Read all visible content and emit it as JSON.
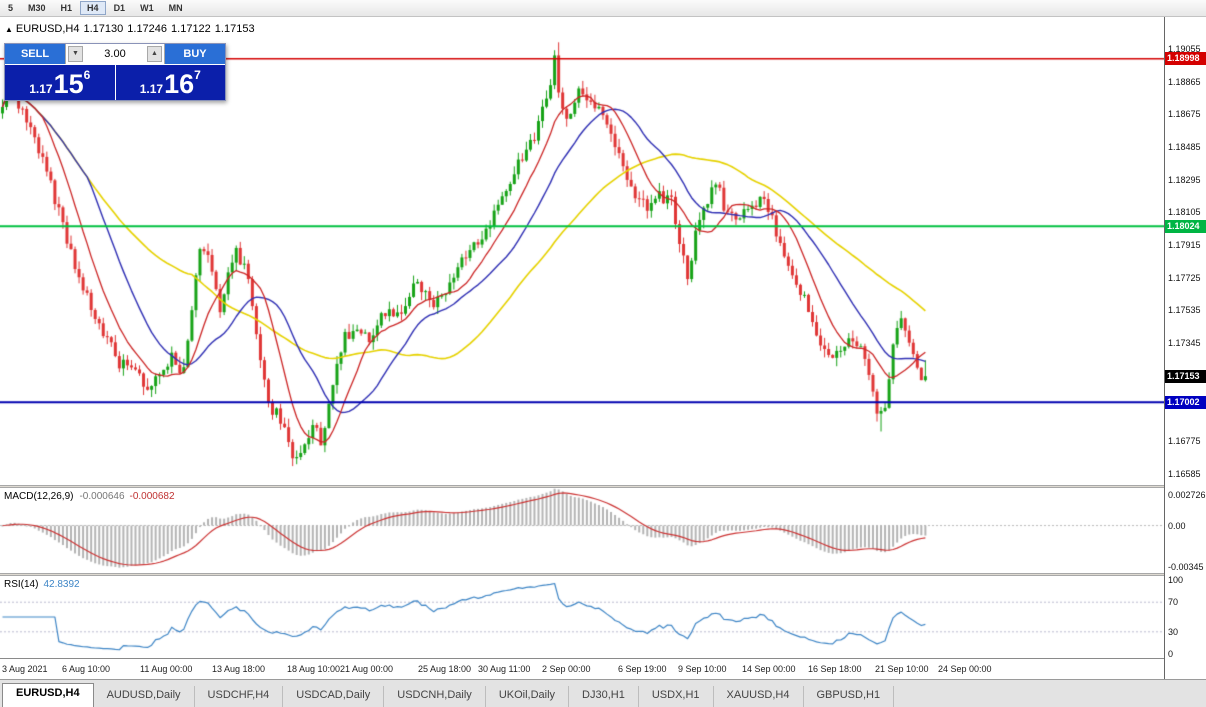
{
  "toolbar": {
    "timeframes": [
      {
        "label": "5",
        "active": false
      },
      {
        "label": "M30",
        "active": false
      },
      {
        "label": "H1",
        "active": false
      },
      {
        "label": "H4",
        "active": true
      },
      {
        "label": "D1",
        "active": false
      },
      {
        "label": "W1",
        "active": false
      },
      {
        "label": "MN",
        "active": false
      }
    ]
  },
  "chart": {
    "symbol_line": {
      "arrow": "▲",
      "symbol": "EURUSD,H4",
      "open": "1.17130",
      "high": "1.17246",
      "low": "1.17122",
      "close": "1.17153"
    },
    "trade_panel": {
      "sell_label": "SELL",
      "buy_label": "BUY",
      "volume": "3.00",
      "down_glyph": "▼",
      "up_glyph": "▲",
      "sell_price": {
        "prefix": "1.17",
        "big": "15",
        "sup": "6"
      },
      "buy_price": {
        "prefix": "1.17",
        "big": "16",
        "sup": "7"
      }
    },
    "price_axis": {
      "gridline_labels": [
        "1.19055",
        "1.18865",
        "1.18675",
        "1.18485",
        "1.18295",
        "1.18105",
        "1.17915",
        "1.17725",
        "1.17535",
        "1.17345",
        "1.16775",
        "1.16585"
      ],
      "marked": [
        {
          "value": "1.18998",
          "bg": "#d40000"
        },
        {
          "value": "1.18024",
          "bg": "#00b544"
        },
        {
          "value": "1.17153",
          "bg": "#000000"
        },
        {
          "value": "1.17002",
          "bg": "#0000c0"
        }
      ]
    },
    "time_axis": [
      [
        "3 Aug 2021",
        2
      ],
      [
        "6 Aug 10:00",
        62
      ],
      [
        "11 Aug 00:00",
        140
      ],
      [
        "13 Aug 18:00",
        212
      ],
      [
        "18 Aug 10:00",
        287
      ],
      [
        "21 Aug 00:00",
        340
      ],
      [
        "25 Aug 18:00",
        418
      ],
      [
        "30 Aug 11:00",
        478
      ],
      [
        "2 Sep 00:00",
        542
      ],
      [
        "6 Sep 19:00",
        618
      ],
      [
        "9 Sep 10:00",
        678
      ],
      [
        "14 Sep 00:00",
        742
      ],
      [
        "16 Sep 18:00",
        808
      ],
      [
        "21 Sep 10:00",
        875
      ],
      [
        "24 Sep 00:00",
        938
      ]
    ]
  },
  "macd": {
    "label": "MACD(12,26,9)",
    "value1": "-0.000646",
    "value2": "-0.000682",
    "axis": [
      "0.002726",
      "0.00",
      "-0.00345"
    ],
    "axis_max": 0.002726,
    "axis_min": -0.00345
  },
  "rsi": {
    "label": "RSI(14)",
    "value": "42.8392",
    "axis": [
      "100",
      "70",
      "30",
      "0"
    ],
    "levels": [
      70,
      30
    ]
  },
  "tabs": [
    {
      "label": "EURUSD,H4",
      "active": true
    },
    {
      "label": "AUDUSD,Daily",
      "active": false
    },
    {
      "label": "USDCHF,H4",
      "active": false
    },
    {
      "label": "USDCAD,Daily",
      "active": false
    },
    {
      "label": "USDCNH,Daily",
      "active": false
    },
    {
      "label": "UKOil,Daily",
      "active": false
    },
    {
      "label": "DJ30,H1",
      "active": false
    },
    {
      "label": "USDX,H1",
      "active": false
    },
    {
      "label": "XAUUSD,H4",
      "active": false
    },
    {
      "label": "GBPUSD,H1",
      "active": false
    }
  ],
  "chart_data": {
    "type": "candlestick",
    "symbol": "EURUSD",
    "timeframe": "H4",
    "title": "EURUSD,H4",
    "x_range": [
      "3 Aug 2021",
      "24 Sep 2021"
    ],
    "price_top": 1.1924,
    "price_bottom": 1.16521,
    "candle_count": 230,
    "last_candle": {
      "open": 1.1713,
      "high": 1.17246,
      "low": 1.17122,
      "close": 1.17153
    },
    "anchors": [
      [
        0,
        1.1868
      ],
      [
        2,
        1.1888
      ],
      [
        5,
        1.1872
      ],
      [
        8,
        1.1858
      ],
      [
        12,
        1.1832
      ],
      [
        16,
        1.18
      ],
      [
        20,
        1.1768
      ],
      [
        25,
        1.1745
      ],
      [
        30,
        1.1722
      ],
      [
        34,
        1.1722
      ],
      [
        36,
        1.1708
      ],
      [
        40,
        1.1718
      ],
      [
        43,
        1.1728
      ],
      [
        45,
        1.1712
      ],
      [
        48,
        1.176
      ],
      [
        50,
        1.1795
      ],
      [
        52,
        1.1785
      ],
      [
        55,
        1.1752
      ],
      [
        58,
        1.1788
      ],
      [
        61,
        1.178
      ],
      [
        64,
        1.1735
      ],
      [
        67,
        1.1698
      ],
      [
        70,
        1.169
      ],
      [
        73,
        1.1667
      ],
      [
        76,
        1.1673
      ],
      [
        78,
        1.1692
      ],
      [
        80,
        1.1672
      ],
      [
        83,
        1.1715
      ],
      [
        86,
        1.174
      ],
      [
        89,
        1.1742
      ],
      [
        92,
        1.1738
      ],
      [
        95,
        1.1755
      ],
      [
        98,
        1.1749
      ],
      [
        101,
        1.176
      ],
      [
        104,
        1.177
      ],
      [
        107,
        1.1755
      ],
      [
        110,
        1.1763
      ],
      [
        113,
        1.1775
      ],
      [
        116,
        1.1788
      ],
      [
        119,
        1.1795
      ],
      [
        122,
        1.1805
      ],
      [
        125,
        1.182
      ],
      [
        128,
        1.1838
      ],
      [
        131,
        1.1845
      ],
      [
        134,
        1.1862
      ],
      [
        137,
        1.189
      ],
      [
        138,
        1.1902
      ],
      [
        139,
        1.1872
      ],
      [
        141,
        1.1868
      ],
      [
        144,
        1.1882
      ],
      [
        146,
        1.1878
      ],
      [
        149,
        1.1868
      ],
      [
        152,
        1.1855
      ],
      [
        155,
        1.1832
      ],
      [
        158,
        1.1818
      ],
      [
        161,
        1.1812
      ],
      [
        164,
        1.182
      ],
      [
        167,
        1.1816
      ],
      [
        169,
        1.1788
      ],
      [
        171,
        1.1772
      ],
      [
        173,
        1.1805
      ],
      [
        176,
        1.1818
      ],
      [
        178,
        1.1828
      ],
      [
        180,
        1.1812
      ],
      [
        183,
        1.1806
      ],
      [
        186,
        1.1814
      ],
      [
        189,
        1.1818
      ],
      [
        192,
        1.1804
      ],
      [
        195,
        1.1785
      ],
      [
        198,
        1.1768
      ],
      [
        201,
        1.1755
      ],
      [
        204,
        1.1732
      ],
      [
        207,
        1.1726
      ],
      [
        210,
        1.1735
      ],
      [
        213,
        1.1733
      ],
      [
        215,
        1.1722
      ],
      [
        217,
        1.17
      ],
      [
        218,
        1.1688
      ],
      [
        220,
        1.1698
      ],
      [
        222,
        1.1742
      ],
      [
        224,
        1.175
      ],
      [
        226,
        1.1735
      ],
      [
        228,
        1.1718
      ],
      [
        230,
        1.17153
      ]
    ],
    "levels": [
      {
        "price": 1.18998,
        "color": "#d40000",
        "width": 1.5
      },
      {
        "price": 1.18024,
        "color": "#00c040",
        "width": 2
      },
      {
        "price": 1.17002,
        "color": "#0000b0",
        "width": 2
      }
    ],
    "moving_averages": [
      {
        "period": 10,
        "color": "#cc2525"
      },
      {
        "period": 22,
        "color": "#2f2fb4"
      },
      {
        "period": 48,
        "color": "#e6d200"
      }
    ],
    "colors": {
      "up": "#17a317",
      "down": "#e03636",
      "macd_hist": "#b4b4b4",
      "macd_signal": "#cc3333",
      "rsi": "#3d85c6"
    }
  }
}
